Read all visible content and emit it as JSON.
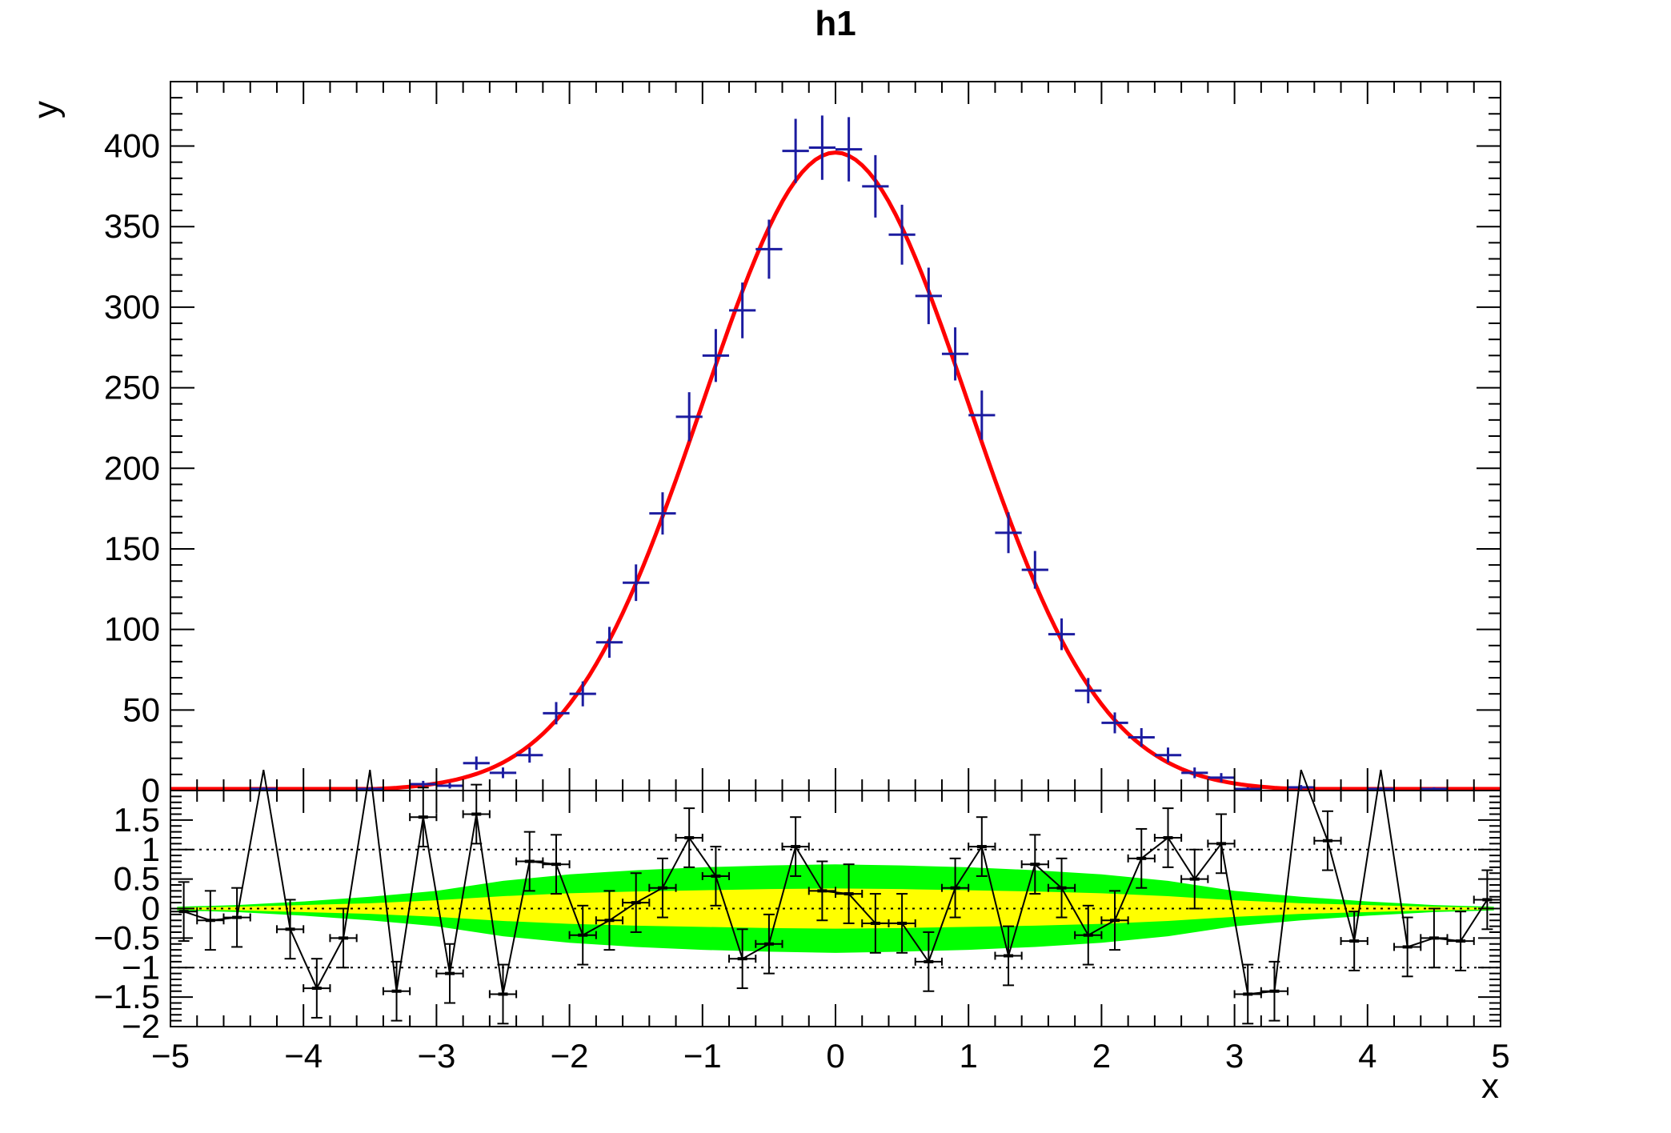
{
  "title": "h1",
  "axes": {
    "x": {
      "label": "x",
      "min": -5,
      "max": 5,
      "major_ticks": [
        -5,
        -4,
        -3,
        -2,
        -1,
        0,
        1,
        2,
        3,
        4,
        5
      ],
      "tick_labels": [
        "−5",
        "−4",
        "−3",
        "−2",
        "−1",
        "0",
        "1",
        "2",
        "3",
        "4",
        "5"
      ],
      "minor_step": 0.2
    },
    "y_main": {
      "label": "y",
      "min": 0,
      "max": 440,
      "major_ticks": [
        0,
        50,
        100,
        150,
        200,
        250,
        300,
        350,
        400
      ],
      "tick_labels": [
        "0",
        "50",
        "100",
        "150",
        "200",
        "250",
        "300",
        "350",
        "400"
      ],
      "minor_step": 10
    },
    "y_ratio": {
      "min": -2,
      "max": 2,
      "major_ticks": [
        -2,
        -1.5,
        -1,
        -0.5,
        0,
        0.5,
        1,
        1.5
      ],
      "tick_labels": [
        "−2",
        "−1.5",
        "−1",
        "−0.5",
        "0",
        "0.5",
        "1",
        "1.5"
      ],
      "minor_step": 0.1,
      "guide_lines": [
        -1,
        0,
        1
      ]
    }
  },
  "colors": {
    "fit_line": "#ff0000",
    "data_marker": "#1c1ca0",
    "pull_line": "#000000",
    "band_1sigma": "#ffff00",
    "band_2sigma": "#00ff00",
    "frame": "#000000",
    "background": "#ffffff"
  },
  "chart_data": [
    {
      "type": "scatter",
      "name": "histogram-with-gaussian-fit",
      "title": "h1",
      "xlabel": "x",
      "ylabel": "y",
      "xlim": [
        -5,
        5
      ],
      "ylim": [
        0,
        440
      ],
      "bin_width": 0.2,
      "x": [
        -4.9,
        -4.7,
        -4.5,
        -4.3,
        -4.1,
        -3.9,
        -3.7,
        -3.5,
        -3.3,
        -3.1,
        -2.9,
        -2.7,
        -2.5,
        -2.3,
        -2.1,
        -1.9,
        -1.7,
        -1.5,
        -1.3,
        -1.1,
        -0.9,
        -0.7,
        -0.5,
        -0.3,
        -0.1,
        0.1,
        0.3,
        0.5,
        0.7,
        0.9,
        1.1,
        1.3,
        1.5,
        1.7,
        1.9,
        2.1,
        2.3,
        2.5,
        2.7,
        2.9,
        3.1,
        3.3,
        3.5,
        3.7,
        3.9,
        4.1,
        4.3,
        4.5,
        4.7,
        4.9
      ],
      "values": [
        0,
        0,
        0,
        1,
        0,
        0,
        0,
        1,
        0,
        4,
        3,
        17,
        11,
        22,
        48,
        60,
        92,
        129,
        172,
        232,
        270,
        298,
        336,
        397,
        399,
        398,
        375,
        345,
        307,
        271,
        233,
        160,
        137,
        97,
        62,
        42,
        33,
        22,
        11,
        8,
        1,
        0,
        2,
        0,
        0,
        1,
        0,
        1,
        0,
        0
      ],
      "error_model": "sqrt(N)",
      "fit": {
        "shape": "gaussian",
        "amplitude": 396,
        "mean": 0,
        "sigma": 1
      }
    },
    {
      "type": "line",
      "name": "pull-residual-panel",
      "ylim": [
        -2,
        2
      ],
      "x": [
        -4.9,
        -4.7,
        -4.5,
        -4.3,
        -4.1,
        -3.9,
        -3.7,
        -3.5,
        -3.3,
        -3.1,
        -2.9,
        -2.7,
        -2.5,
        -2.3,
        -2.1,
        -1.9,
        -1.7,
        -1.5,
        -1.3,
        -1.1,
        -0.9,
        -0.7,
        -0.5,
        -0.3,
        -0.1,
        0.1,
        0.3,
        0.5,
        0.7,
        0.9,
        1.1,
        1.3,
        1.5,
        1.7,
        1.9,
        2.1,
        2.3,
        2.5,
        2.7,
        2.9,
        3.1,
        3.3,
        3.5,
        3.7,
        3.9,
        4.1,
        4.3,
        4.5,
        4.7,
        4.9
      ],
      "values": [
        -0.05,
        -0.2,
        -0.15,
        2.35,
        -0.35,
        -1.35,
        -0.5,
        2.35,
        -1.4,
        1.55,
        -1.1,
        1.6,
        -1.45,
        0.8,
        0.75,
        -0.45,
        -0.2,
        0.1,
        0.35,
        1.2,
        0.55,
        -0.85,
        -0.6,
        1.05,
        0.3,
        0.25,
        -0.25,
        -0.25,
        -0.9,
        0.35,
        1.05,
        -0.8,
        0.75,
        0.35,
        -0.45,
        -0.2,
        0.85,
        1.2,
        0.5,
        1.1,
        -1.45,
        -1.4,
        2.35,
        1.15,
        -0.55,
        2.35,
        -0.65,
        -0.5,
        -0.55,
        0.15
      ],
      "y_error": 0.5,
      "x_error": 0.1,
      "bands": {
        "x": [
          -4.95,
          -4.5,
          -4.0,
          -3.5,
          -3.0,
          -2.5,
          -2.0,
          -1.5,
          -1.0,
          -0.5,
          0,
          0.5,
          1.0,
          1.5,
          2.0,
          2.5,
          3.0,
          3.5,
          4.0,
          4.5,
          4.95
        ],
        "two_sigma_halfwidth": [
          0.03,
          0.06,
          0.12,
          0.2,
          0.3,
          0.47,
          0.58,
          0.65,
          0.7,
          0.73,
          0.75,
          0.73,
          0.7,
          0.65,
          0.58,
          0.47,
          0.3,
          0.2,
          0.12,
          0.06,
          0.03
        ],
        "one_sigma_halfwidth": [
          0.015,
          0.03,
          0.06,
          0.09,
          0.14,
          0.21,
          0.26,
          0.29,
          0.31,
          0.33,
          0.34,
          0.33,
          0.31,
          0.29,
          0.26,
          0.21,
          0.14,
          0.09,
          0.06,
          0.03,
          0.015
        ]
      },
      "guide_lines": [
        -1,
        0,
        1
      ]
    }
  ]
}
